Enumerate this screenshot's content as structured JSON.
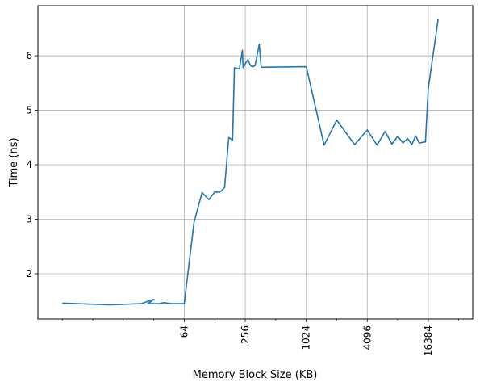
{
  "chart_data": {
    "type": "line",
    "xscale": "log2",
    "xlabel": "Memory Block Size (KB)",
    "ylabel": "Time (ns)",
    "xlim": [
      2.3,
      45000
    ],
    "ylim": [
      1.17,
      6.92
    ],
    "grid": true,
    "x_ticks": [
      64,
      256,
      1024,
      4096,
      16384
    ],
    "x_tick_labels": [
      "64",
      "256",
      "1024",
      "4096",
      "16384"
    ],
    "y_ticks": [
      2,
      3,
      4,
      5,
      6
    ],
    "y_tick_labels": [
      "2",
      "3",
      "4",
      "5",
      "6"
    ],
    "series": [
      {
        "color": "#1f77b4",
        "x": [
          4,
          12,
          24,
          32,
          28,
          36,
          40,
          48,
          64,
          80,
          96,
          112,
          128,
          144,
          160,
          176,
          192,
          200,
          208,
          224,
          240,
          244,
          256,
          272,
          288,
          304,
          320,
          352,
          368,
          1024,
          1536,
          2048,
          3072,
          4096,
          5120,
          6144,
          7168,
          8192,
          9216,
          10240,
          11264,
          12288,
          13312,
          14336,
          15360,
          16384,
          20480
        ],
        "y": [
          1.46,
          1.43,
          1.45,
          1.53,
          1.45,
          1.45,
          1.47,
          1.45,
          1.45,
          2.95,
          3.49,
          3.36,
          3.5,
          3.5,
          3.58,
          4.5,
          4.45,
          5.78,
          5.77,
          5.76,
          6.1,
          5.78,
          5.85,
          5.93,
          5.82,
          5.8,
          5.82,
          6.21,
          5.79,
          5.8,
          4.36,
          4.82,
          4.37,
          4.64,
          4.36,
          4.61,
          4.38,
          4.52,
          4.4,
          4.48,
          4.37,
          4.53,
          4.4,
          4.41,
          4.42,
          5.4,
          6.67
        ]
      }
    ]
  }
}
